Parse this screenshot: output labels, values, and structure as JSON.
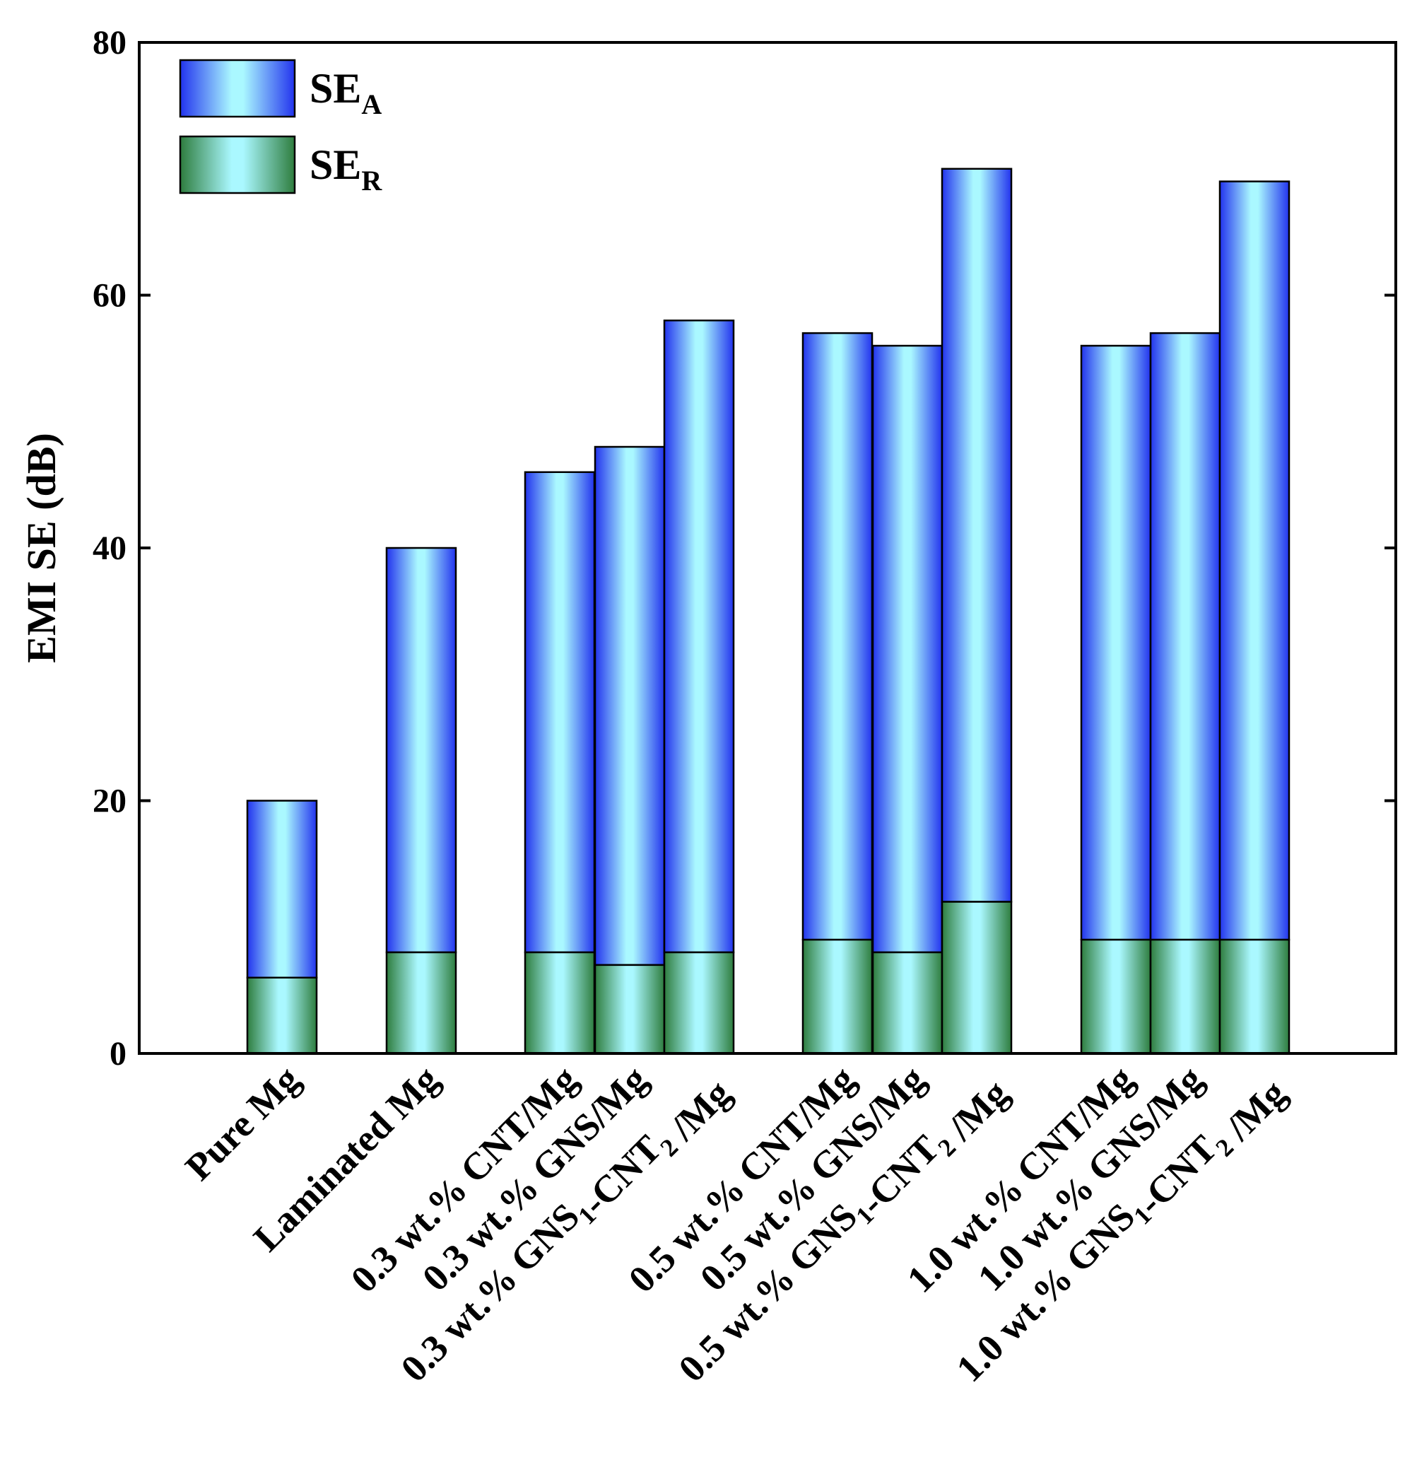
{
  "chart_data": {
    "type": "bar",
    "stacked": true,
    "title": "",
    "xlabel": "",
    "ylabel": "EMI SE (dB)",
    "ylim": [
      0,
      80
    ],
    "yticks": [
      0,
      20,
      40,
      60,
      80
    ],
    "categories": [
      {
        "main": "Pure Mg",
        "sub": "",
        "mid": "",
        "sub2": "",
        "tail": ""
      },
      {
        "main": "Laminated Mg",
        "sub": "",
        "mid": "",
        "sub2": "",
        "tail": ""
      },
      {
        "main": "0.3 wt.% CNT/Mg",
        "sub": "",
        "mid": "",
        "sub2": "",
        "tail": ""
      },
      {
        "main": "0.3 wt.% GNS/Mg",
        "sub": "",
        "mid": "",
        "sub2": "",
        "tail": ""
      },
      {
        "main": "0.3 wt.% GNS",
        "sub": "1",
        "mid": "-CNT",
        "sub2": "2",
        "tail": " /Mg"
      },
      {
        "main": "0.5 wt.% CNT/Mg",
        "sub": "",
        "mid": "",
        "sub2": "",
        "tail": ""
      },
      {
        "main": "0.5 wt.% GNS/Mg",
        "sub": "",
        "mid": "",
        "sub2": "",
        "tail": ""
      },
      {
        "main": "0.5 wt.% GNS",
        "sub": "1",
        "mid": "-CNT",
        "sub2": "2",
        "tail": " /Mg"
      },
      {
        "main": "1.0 wt.% CNT/Mg",
        "sub": "",
        "mid": "",
        "sub2": "",
        "tail": ""
      },
      {
        "main": "1.0 wt.% GNS/Mg",
        "sub": "",
        "mid": "",
        "sub2": "",
        "tail": ""
      },
      {
        "main": "1.0 wt.% GNS",
        "sub": "1",
        "mid": "-CNT",
        "sub2": "2",
        "tail": " /Mg"
      }
    ],
    "series": [
      {
        "name": "SE_R",
        "label_main": "SE",
        "label_sub": "R",
        "values": [
          6,
          8,
          8,
          7,
          8,
          9,
          8,
          12,
          9,
          9,
          9
        ]
      },
      {
        "name": "SE_A",
        "label_main": "SE",
        "label_sub": "A",
        "values": [
          14,
          32,
          38,
          41,
          50,
          48,
          48,
          58,
          47,
          48,
          60
        ]
      }
    ],
    "totals": [
      20,
      40,
      46,
      48,
      58,
      57,
      56,
      70,
      56,
      57,
      69
    ],
    "legend_position": "top-left",
    "colors": {
      "se_a_edge": "#2233ee",
      "se_a_center": "#aaf8ff",
      "se_r_edge": "#2e7d3e",
      "se_r_center": "#aaf8ff",
      "outline": "#000000"
    }
  }
}
